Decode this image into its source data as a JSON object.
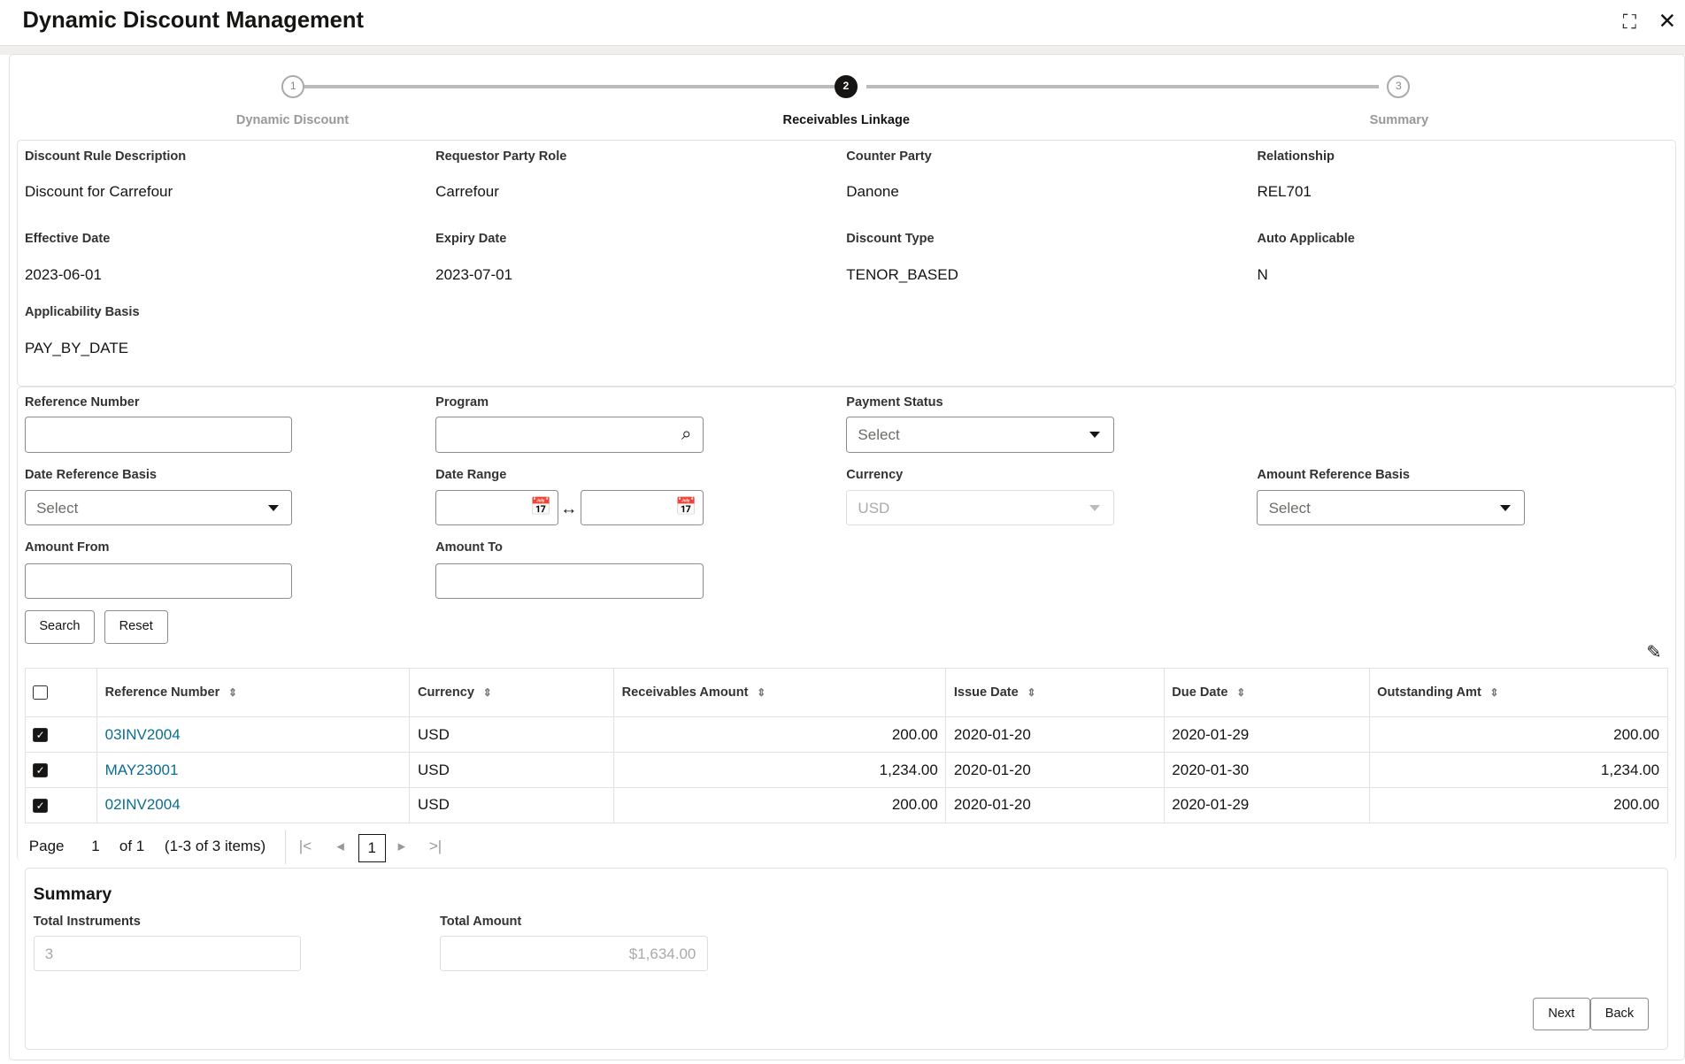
{
  "header": {
    "title": "Dynamic Discount Management"
  },
  "stepper": [
    {
      "num": "1",
      "label": "Dynamic Discount"
    },
    {
      "num": "2",
      "label": "Receivables Linkage"
    },
    {
      "num": "3",
      "label": "Summary"
    }
  ],
  "details": [
    {
      "label": "Discount Rule Description",
      "value": "Discount for Carrefour"
    },
    {
      "label": "Requestor Party Role",
      "value": "Carrefour"
    },
    {
      "label": "Counter Party",
      "value": "Danone"
    },
    {
      "label": "Relationship",
      "value": "REL701"
    },
    {
      "label": "Effective Date",
      "value": "2023-06-01"
    },
    {
      "label": "Expiry Date",
      "value": "2023-07-01"
    },
    {
      "label": "Discount Type",
      "value": "TENOR_BASED"
    },
    {
      "label": "Auto Applicable",
      "value": "N"
    },
    {
      "label": "Applicability Basis",
      "value": "PAY_BY_DATE"
    }
  ],
  "filters": {
    "reference_number": {
      "label": "Reference Number",
      "value": ""
    },
    "program": {
      "label": "Program",
      "value": ""
    },
    "payment_status": {
      "label": "Payment Status",
      "value": "Select"
    },
    "date_reference_basis": {
      "label": "Date Reference Basis",
      "value": "Select"
    },
    "date_range": {
      "label": "Date Range"
    },
    "currency": {
      "label": "Currency",
      "value": "USD"
    },
    "amount_reference_basis": {
      "label": "Amount Reference Basis",
      "value": "Select"
    },
    "amount_from": {
      "label": "Amount From",
      "value": ""
    },
    "amount_to": {
      "label": "Amount To",
      "value": ""
    },
    "search_label": "Search",
    "reset_label": "Reset"
  },
  "table": {
    "columns": [
      "Reference Number",
      "Currency",
      "Receivables Amount",
      "Issue Date",
      "Due Date",
      "Outstanding Amt"
    ],
    "rows": [
      {
        "checked": true,
        "ref": "03INV2004",
        "currency": "USD",
        "amount": "200.00",
        "issue": "2020-01-20",
        "due": "2020-01-29",
        "outstanding": "200.00"
      },
      {
        "checked": true,
        "ref": "MAY23001",
        "currency": "USD",
        "amount": "1,234.00",
        "issue": "2020-01-20",
        "due": "2020-01-30",
        "outstanding": "1,234.00"
      },
      {
        "checked": true,
        "ref": "02INV2004",
        "currency": "USD",
        "amount": "200.00",
        "issue": "2020-01-20",
        "due": "2020-01-29",
        "outstanding": "200.00"
      }
    ]
  },
  "pagination": {
    "page_label": "Page",
    "page": "1",
    "of": "of 1",
    "items": "(1-3 of 3 items)",
    "current": "1"
  },
  "summary": {
    "title": "Summary",
    "total_instruments_label": "Total Instruments",
    "total_instruments": "3",
    "total_amount_label": "Total Amount",
    "total_amount": "$1,634.00"
  },
  "actions": {
    "next": "Next",
    "back": "Back"
  }
}
